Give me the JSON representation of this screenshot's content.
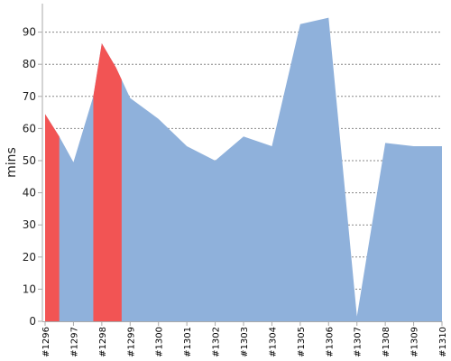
{
  "chart_data": {
    "type": "area",
    "title": "",
    "xlabel": "",
    "ylabel": "mins",
    "ylim": [
      0,
      100
    ],
    "yticks": [
      0,
      10,
      20,
      30,
      40,
      50,
      60,
      70,
      80,
      90
    ],
    "grid": true,
    "categories": [
      "#1296",
      "#1297",
      "#1298",
      "#1299",
      "#1300",
      "#1301",
      "#1302",
      "#1303",
      "#1304",
      "#1305",
      "#1306",
      "#1307",
      "#1308",
      "#1309",
      "#1310"
    ],
    "x": [
      1296,
      1296.5,
      1297,
      1297.7,
      1298,
      1298.5,
      1299,
      1300,
      1301,
      1302,
      1303,
      1304,
      1305,
      1306,
      1307,
      1308,
      1309,
      1310
    ],
    "values": [
      64.5,
      57.5,
      49.5,
      70,
      86.5,
      79,
      69.5,
      63,
      54.5,
      50,
      57.5,
      54.5,
      92.5,
      94.5,
      1.5,
      55.5,
      54.5,
      54.5
    ],
    "colors": {
      "area": "#8fb1db",
      "highlight": "#f25454",
      "grid": "#888888",
      "axis": "#aaaaaa"
    },
    "highlight_ranges": [
      [
        1296,
        1296.5
      ],
      [
        1297.7,
        1298.7
      ]
    ]
  }
}
